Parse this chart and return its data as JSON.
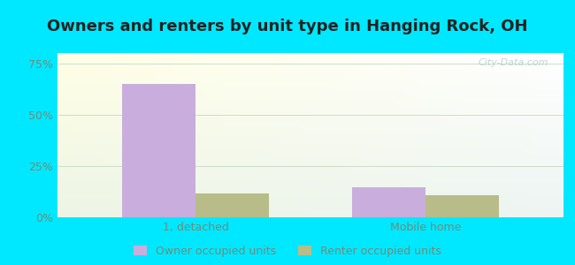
{
  "title": "Owners and renters by unit type in Hanging Rock, OH",
  "categories": [
    "1, detached",
    "Mobile home"
  ],
  "owner_values": [
    0.648,
    0.148
  ],
  "renter_values": [
    0.118,
    0.108
  ],
  "owner_color": "#c9aedd",
  "renter_color": "#b8bc88",
  "bar_width": 0.32,
  "ylim": [
    0,
    0.8
  ],
  "yticks": [
    0,
    0.25,
    0.5,
    0.75
  ],
  "ytick_labels": [
    "0%",
    "25%",
    "50%",
    "75%"
  ],
  "background_outer": "#00e8ff",
  "grid_color": "#ccddcc",
  "title_fontsize": 13,
  "legend_labels": [
    "Owner occupied units",
    "Renter occupied units"
  ],
  "watermark": "City-Data.com",
  "tick_color": "#778877",
  "axis_label_color": "#667766"
}
